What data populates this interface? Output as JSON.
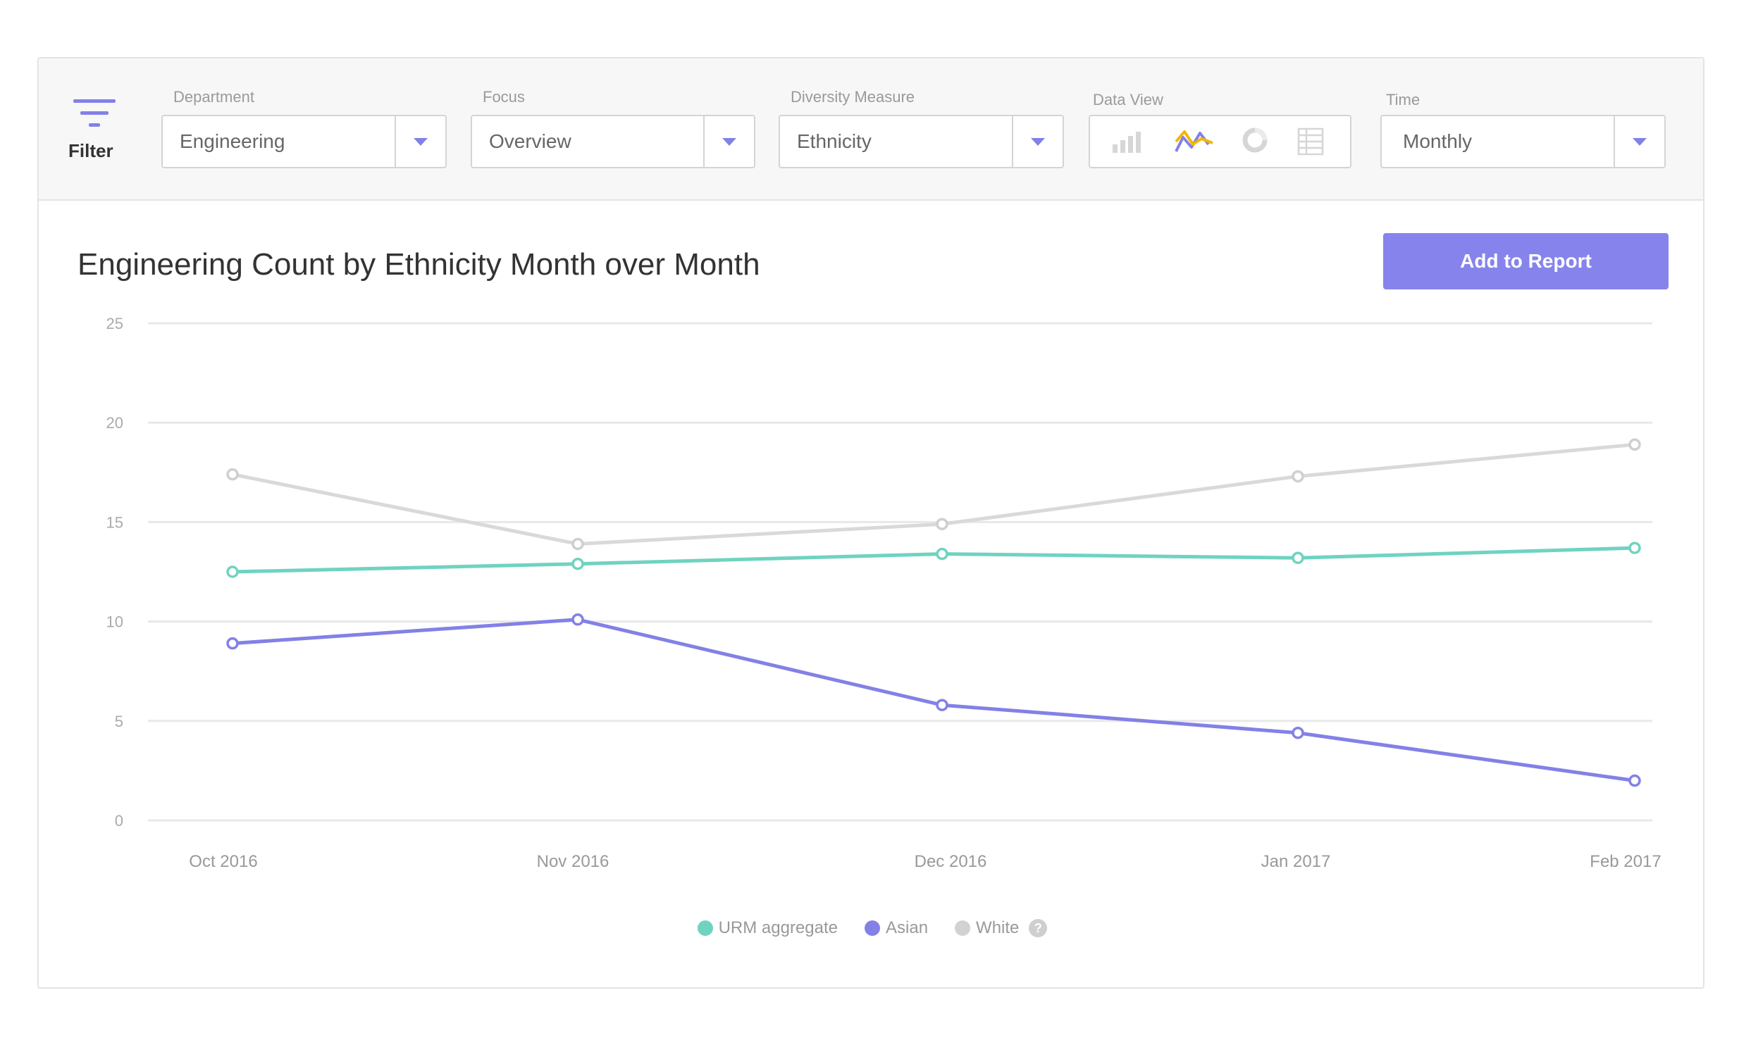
{
  "filter_bar": {
    "filter_label": "Filter",
    "department": {
      "label": "Department",
      "value": "Engineering"
    },
    "focus": {
      "label": "Focus",
      "value": "Overview"
    },
    "diversity_measure": {
      "label": "Diversity Measure",
      "value": "Ethnicity"
    },
    "data_view": {
      "label": "Data View",
      "options": [
        "bar-chart-icon",
        "line-chart-icon",
        "donut-chart-icon",
        "table-icon"
      ],
      "selected": "line-chart-icon"
    },
    "time": {
      "label": "Time",
      "value": "Monthly"
    }
  },
  "report": {
    "title": "Engineering Count by Ethnicity Month over Month",
    "add_button": "Add to Report"
  },
  "colors": {
    "accent": "#8684ec",
    "urm": "#6fd3c0",
    "asian": "#8381e6",
    "white": "#d9d9d9",
    "yellow": "#f2b705"
  },
  "chart_data": {
    "type": "line",
    "title": "Engineering Count by Ethnicity Month over Month",
    "xlabel": "",
    "ylabel": "",
    "categories": [
      "Oct 2016",
      "Nov 2016",
      "Dec 2016",
      "Jan 2017",
      "Feb 2017"
    ],
    "ylim": [
      0,
      25
    ],
    "yticks": [
      0,
      5,
      10,
      15,
      20,
      25
    ],
    "grid": true,
    "legend_position": "bottom-center",
    "series": [
      {
        "name": "URM aggregate",
        "color": "#6fd3c0",
        "values": [
          12.5,
          12.9,
          13.4,
          13.2,
          13.7
        ]
      },
      {
        "name": "Asian",
        "color": "#8381e6",
        "values": [
          8.9,
          10.1,
          5.8,
          4.4,
          2.0
        ]
      },
      {
        "name": "White",
        "color": "#d9d9d9",
        "values": [
          17.4,
          13.9,
          14.9,
          17.3,
          18.9
        ]
      }
    ]
  }
}
